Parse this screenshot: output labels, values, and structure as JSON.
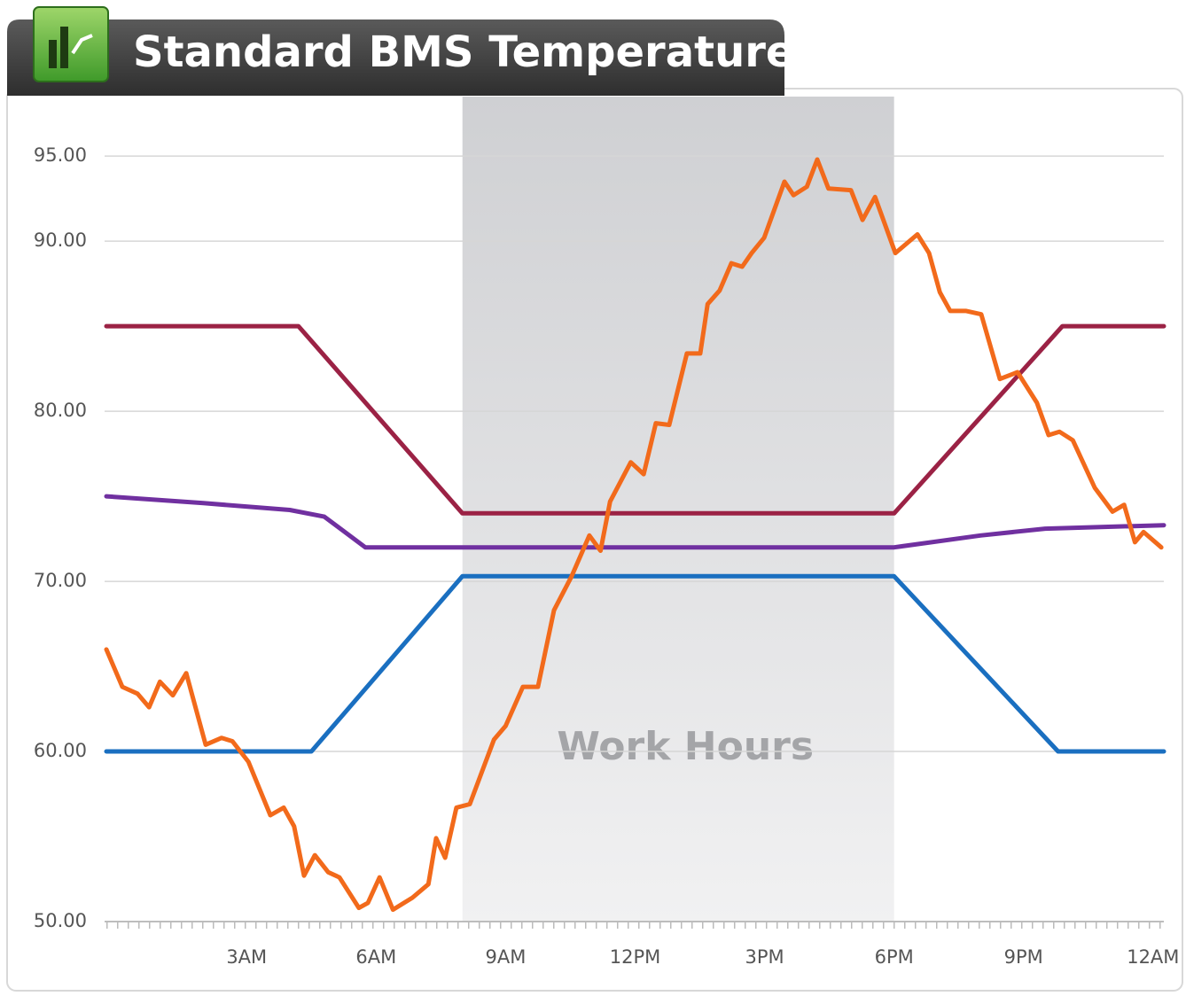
{
  "chart_data": {
    "type": "line",
    "title": "Standard BMS Temperatures",
    "xlim": [
      -0.25,
      24.25
    ],
    "xticks": [
      {
        "value": 3,
        "label": "3AM"
      },
      {
        "value": 6,
        "label": "6AM"
      },
      {
        "value": 9,
        "label": "9AM"
      },
      {
        "value": 12,
        "label": "12PM"
      },
      {
        "value": 15,
        "label": "3PM"
      },
      {
        "value": 18,
        "label": "6PM"
      },
      {
        "value": 21,
        "label": "9PM"
      },
      {
        "value": 24,
        "label": "12AM"
      }
    ],
    "ylim": [
      50,
      98.5
    ],
    "yticks": [
      {
        "value": 50,
        "label": "50.00"
      },
      {
        "value": 60,
        "label": "60.00"
      },
      {
        "value": 70,
        "label": "70.00"
      },
      {
        "value": 80,
        "label": "80.00"
      },
      {
        "value": 90,
        "label": "90.00"
      },
      {
        "value": 95,
        "label": "95.00"
      }
    ],
    "grid": true,
    "highlight": {
      "from": 8,
      "to": 18,
      "label": "Work Hours"
    },
    "series": [
      {
        "color": "#9b2245",
        "x": [
          -0.25,
          4.2,
          8,
          18,
          21.9,
          24.25
        ],
        "values": [
          85,
          85,
          74,
          74,
          85,
          85
        ]
      },
      {
        "color": "#1a6fc0",
        "x": [
          -0.25,
          4.5,
          8,
          18,
          21.8,
          24.25
        ],
        "values": [
          60,
          60,
          70.3,
          70.3,
          60,
          60
        ]
      },
      {
        "color": "#7030a0",
        "x": [
          -0.25,
          2,
          4,
          4.8,
          5.75,
          18,
          20,
          21.5,
          24.25
        ],
        "values": [
          75,
          74.6,
          74.2,
          73.8,
          72,
          72,
          72.7,
          73.1,
          73.3
        ]
      },
      {
        "color": "#f26a1b",
        "x": [
          -0.25,
          0.12,
          0.47,
          0.74,
          0.99,
          1.29,
          1.6,
          2.05,
          2.42,
          2.67,
          3.04,
          3.55,
          3.86,
          4.1,
          4.33,
          4.58,
          4.89,
          5.15,
          5.6,
          5.81,
          6.08,
          6.39,
          6.84,
          7.21,
          7.39,
          7.6,
          7.86,
          8.17,
          8.73,
          9.0,
          9.4,
          9.75,
          10.12,
          10.53,
          10.94,
          11.2,
          11.42,
          11.9,
          12.2,
          12.48,
          12.79,
          13.2,
          13.51,
          13.68,
          13.96,
          14.23,
          14.48,
          14.7,
          14.99,
          15.46,
          15.67,
          15.98,
          16.22,
          16.48,
          17.0,
          17.27,
          17.56,
          18.03,
          18.54,
          18.81,
          19.06,
          19.3,
          19.67,
          20.02,
          20.45,
          20.86,
          21.31,
          21.58,
          21.83,
          22.14,
          22.65,
          23.06,
          23.33,
          23.58,
          23.78,
          24.19
        ],
        "values": [
          66.0,
          63.8,
          63.4,
          62.6,
          64.1,
          63.3,
          64.6,
          60.4,
          60.8,
          60.6,
          59.4,
          56.25,
          56.7,
          55.6,
          52.7,
          53.9,
          52.9,
          52.6,
          50.8,
          51.1,
          52.6,
          50.7,
          51.4,
          52.2,
          54.9,
          53.75,
          56.7,
          56.9,
          60.7,
          61.5,
          63.8,
          63.8,
          68.3,
          70.3,
          72.7,
          71.8,
          74.7,
          77.0,
          76.3,
          79.3,
          79.2,
          83.4,
          83.4,
          86.3,
          87.1,
          88.7,
          88.5,
          89.3,
          90.2,
          93.5,
          92.7,
          93.2,
          94.8,
          93.1,
          93.0,
          91.25,
          92.6,
          89.3,
          90.4,
          89.3,
          87.0,
          85.9,
          85.9,
          85.7,
          81.9,
          82.3,
          80.5,
          78.6,
          78.8,
          78.3,
          75.5,
          74.1,
          74.5,
          72.3,
          72.9,
          72.0
        ]
      }
    ]
  }
}
